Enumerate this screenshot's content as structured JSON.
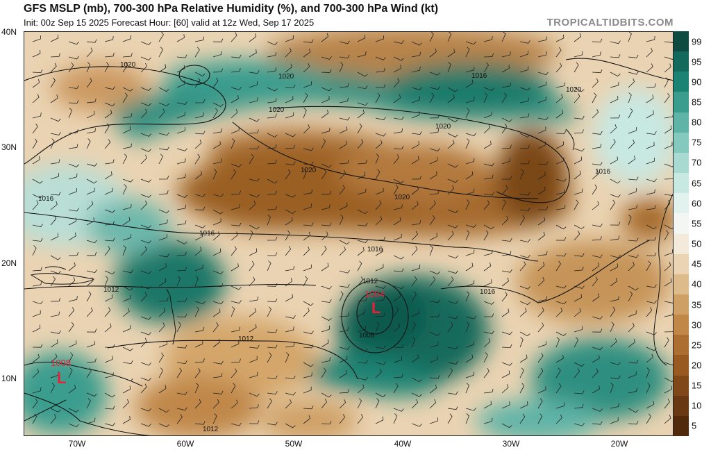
{
  "header": {
    "title": "GFS MSLP (mb), 700-300 hPa Relative Humidity (%), and 700-300 hPa Wind (kt)",
    "subtitle": "Init: 00z Sep 15 2025   Forecast Hour: [60]   valid at 12z Wed, Sep 17 2025",
    "brand": "TROPICALTIDBITS.COM"
  },
  "axes": {
    "lat_labels": [
      "40N",
      "30N",
      "20N",
      "10N"
    ],
    "lon_labels": [
      "70W",
      "60W",
      "50W",
      "40W",
      "30W",
      "20W"
    ]
  },
  "isobars": {
    "labels": [
      "1020",
      "1020",
      "1020",
      "1020",
      "1020",
      "1020",
      "1020",
      "1016",
      "1016",
      "1016",
      "1016",
      "1016",
      "1016",
      "1012",
      "1012",
      "1012",
      "1008",
      "1012"
    ]
  },
  "lows": [
    {
      "pressure": "1004",
      "symbol": "L"
    },
    {
      "pressure": "1008",
      "symbol": "L"
    }
  ],
  "colorbar": {
    "ticks": [
      "99",
      "95",
      "90",
      "85",
      "80",
      "75",
      "70",
      "65",
      "60",
      "55",
      "50",
      "45",
      "40",
      "35",
      "30",
      "25",
      "20",
      "15",
      "10",
      "5"
    ],
    "colors": [
      "#0d4a40",
      "#136a5c",
      "#1b8373",
      "#3a9d8e",
      "#5fb4a7",
      "#85c9be",
      "#a9dad2",
      "#c8e8e2",
      "#e2f2ef",
      "#f3f6f2",
      "#f4eadb",
      "#ead4b3",
      "#ddbb8a",
      "#cfa066",
      "#c08748",
      "#ad6f31",
      "#985a21",
      "#804818",
      "#683812",
      "#512a0c"
    ]
  }
}
